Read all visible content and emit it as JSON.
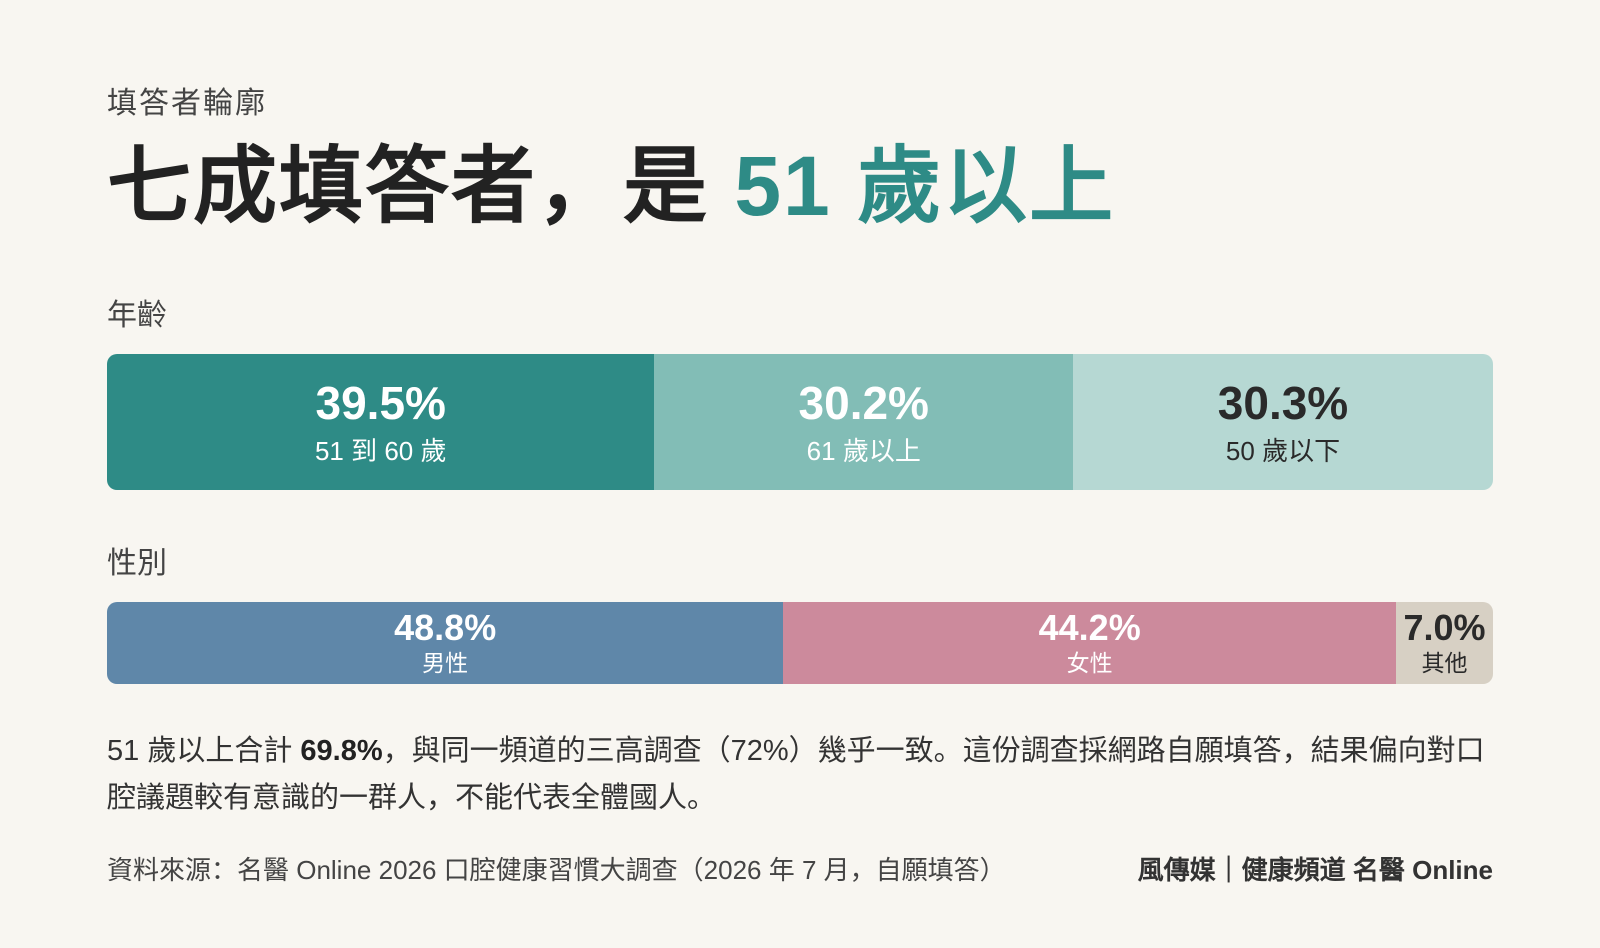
{
  "eyebrow": "填答者輪廓",
  "headline": {
    "main": "七成填答者，是 ",
    "accent": "51 歲以上"
  },
  "chart_data": [
    {
      "type": "bar",
      "title": "年齡",
      "unit": "%",
      "categories": [
        "51 到 60 歲",
        "61 歲以上",
        "50 歲以下"
      ],
      "values": [
        39.5,
        30.2,
        30.3
      ],
      "value_labels": [
        "39.5%",
        "30.2%",
        "30.3%"
      ],
      "colors": [
        "#2e8b86",
        "#82bdb6",
        "#b6d8d3"
      ],
      "text_colors": [
        "#ffffff",
        "#ffffff",
        "#2a2a2a"
      ]
    },
    {
      "type": "bar",
      "title": "性別",
      "unit": "%",
      "categories": [
        "男性",
        "女性",
        "其他"
      ],
      "values": [
        48.8,
        44.2,
        7.0
      ],
      "value_labels": [
        "48.8%",
        "44.2%",
        "7.0%"
      ],
      "colors": [
        "#5f87a9",
        "#cc8a9c",
        "#d7d0c4"
      ],
      "text_colors": [
        "#ffffff",
        "#ffffff",
        "#2a2a2a"
      ]
    }
  ],
  "note": {
    "prefix": "51 歲以上合計 ",
    "highlight": "69.8%",
    "suffix": "，與同一頻道的三高調查（72%）幾乎一致。這份調查採網路自願填答，結果偏向對口腔議題較有意識的一群人，不能代表全體國人。"
  },
  "footer": {
    "source": "資料來源：名醫 Online 2026 口腔健康習慣大調查（2026 年 7 月，自願填答）",
    "brand": "風傳媒｜健康頻道 名醫 Online"
  }
}
